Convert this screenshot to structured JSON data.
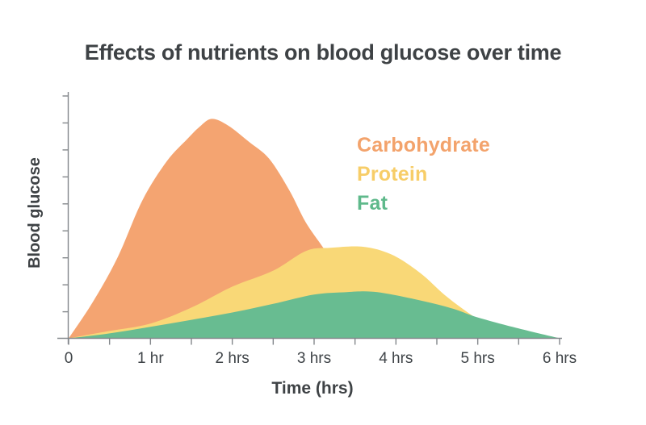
{
  "chart_data": {
    "type": "area",
    "title": "Effects of nutrients on blood glucose over time",
    "xlabel": "Time (hrs)",
    "ylabel": "Blood glucose",
    "x_range_hours": [
      0,
      6
    ],
    "x_minor_tick_step_hr": 0.5,
    "x_tick_labels": [
      {
        "hr": 0,
        "label": "0"
      },
      {
        "hr": 1,
        "label": "1 hr"
      },
      {
        "hr": 2,
        "label": "2 hrs"
      },
      {
        "hr": 3,
        "label": "3 hrs"
      },
      {
        "hr": 4,
        "label": "4 hrs"
      },
      {
        "hr": 5,
        "label": "5 hrs"
      },
      {
        "hr": 6,
        "label": "6 hrs"
      }
    ],
    "y_axis": {
      "tick_count": 9,
      "numeric_labels": false,
      "relative_range": [
        0,
        1
      ]
    },
    "grid": false,
    "legend_position": "top-right-inside",
    "axis_color": "#83878b",
    "text_color": "#3e4245",
    "series": [
      {
        "name": "Carbohydrate",
        "color": "#F4A471",
        "label_color": "#F3A36C",
        "peak_hr": 1.75,
        "peak_rel": 0.89,
        "points": [
          [
            0,
            0
          ],
          [
            0.3,
            0.15
          ],
          [
            0.6,
            0.33
          ],
          [
            0.9,
            0.56
          ],
          [
            1.2,
            0.72
          ],
          [
            1.45,
            0.81
          ],
          [
            1.6,
            0.86
          ],
          [
            1.75,
            0.892
          ],
          [
            1.95,
            0.865
          ],
          [
            2.2,
            0.8
          ],
          [
            2.45,
            0.73
          ],
          [
            2.7,
            0.6
          ],
          [
            2.9,
            0.47
          ],
          [
            3.15,
            0.35
          ],
          [
            3.45,
            0.2
          ],
          [
            3.7,
            0.09
          ],
          [
            3.88,
            0
          ]
        ]
      },
      {
        "name": "Protein",
        "color": "#F9D877",
        "label_color": "#F7CD68",
        "peak_hr": 3.6,
        "peak_rel": 0.37,
        "points": [
          [
            0,
            0
          ],
          [
            0.5,
            0.03
          ],
          [
            1,
            0.06
          ],
          [
            1.5,
            0.125
          ],
          [
            2,
            0.21
          ],
          [
            2.5,
            0.275
          ],
          [
            2.9,
            0.355
          ],
          [
            3.2,
            0.368
          ],
          [
            3.6,
            0.372
          ],
          [
            3.95,
            0.34
          ],
          [
            4.3,
            0.265
          ],
          [
            4.6,
            0.175
          ],
          [
            4.9,
            0.1
          ],
          [
            5.15,
            0.045
          ],
          [
            5.4,
            0
          ]
        ]
      },
      {
        "name": "Fat",
        "color": "#68BC91",
        "label_color": "#5FB98B",
        "peak_hr": 3.7,
        "peak_rel": 0.19,
        "points": [
          [
            0,
            0
          ],
          [
            0.5,
            0.02
          ],
          [
            1,
            0.047
          ],
          [
            1.5,
            0.075
          ],
          [
            2,
            0.105
          ],
          [
            2.5,
            0.14
          ],
          [
            3,
            0.178
          ],
          [
            3.4,
            0.188
          ],
          [
            3.7,
            0.19
          ],
          [
            4,
            0.175
          ],
          [
            4.35,
            0.15
          ],
          [
            4.7,
            0.12
          ],
          [
            5,
            0.085
          ],
          [
            5.5,
            0.04
          ],
          [
            6,
            0
          ]
        ]
      }
    ]
  }
}
